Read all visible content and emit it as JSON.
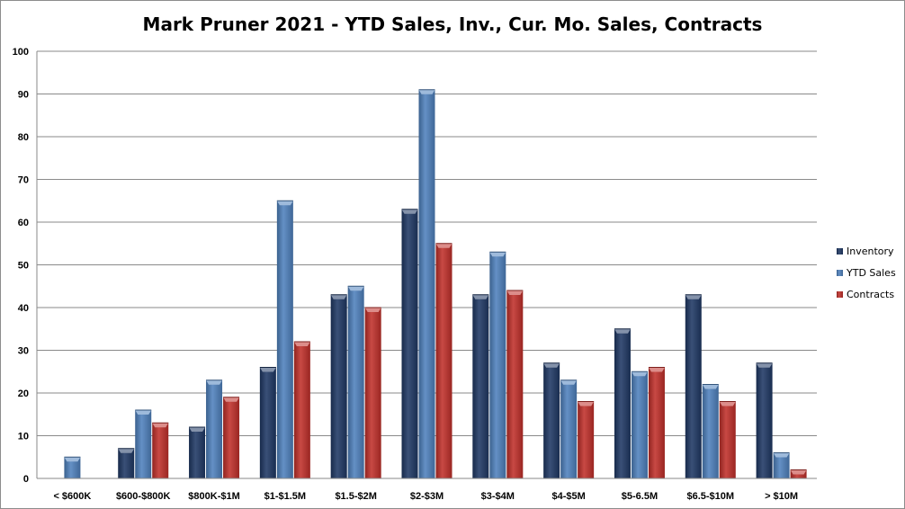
{
  "chart_data": {
    "type": "bar",
    "title": "Mark Pruner 2021 - YTD Sales, Inv., Cur. Mo. Sales, Contracts",
    "xlabel": "",
    "ylabel": "",
    "ylim": [
      0,
      100
    ],
    "yticks": [
      0,
      10,
      20,
      30,
      40,
      50,
      60,
      70,
      80,
      90,
      100
    ],
    "grid": true,
    "legend_position": "right",
    "categories": [
      "< $600K",
      "$600-$800K",
      "$800K-$1M",
      "$1-$1.5M",
      "$1.5-$2M",
      "$2-$3M",
      "$3-$4M",
      "$4-$5M",
      "$5-6.5M",
      "$6.5-$10M",
      "> $10M"
    ],
    "series": [
      {
        "name": "Inventory",
        "color": "#1f3864",
        "values": [
          0,
          7,
          12,
          26,
          43,
          63,
          43,
          27,
          35,
          43,
          27
        ]
      },
      {
        "name": "YTD Sales",
        "color": "#4f81bd",
        "values": [
          5,
          16,
          23,
          65,
          45,
          91,
          53,
          23,
          25,
          22,
          6
        ]
      },
      {
        "name": "Contracts",
        "color": "#c0302b",
        "values": [
          0,
          13,
          19,
          32,
          40,
          55,
          44,
          18,
          26,
          18,
          2
        ]
      }
    ]
  }
}
